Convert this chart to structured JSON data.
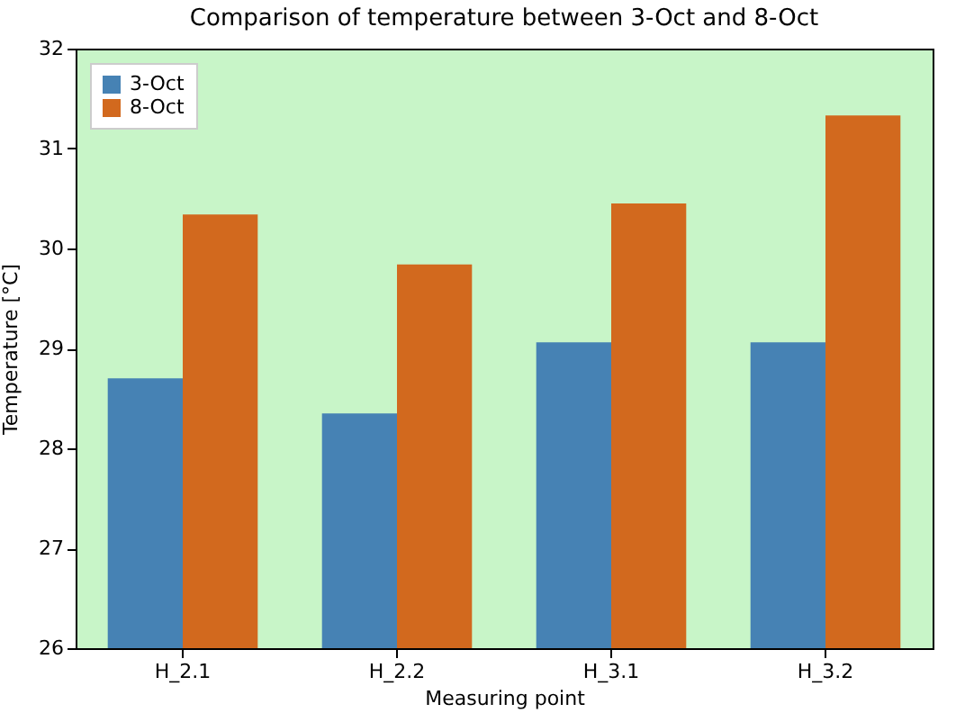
{
  "chart_data": {
    "type": "bar",
    "title": "Comparison of temperature between 3-Oct and 8-Oct",
    "xlabel": "Measuring point",
    "ylabel": "Temperature [°C]",
    "categories": [
      "H_2.1",
      "H_2.2",
      "H_3.1",
      "H_3.2"
    ],
    "series": [
      {
        "name": "3-Oct",
        "color": "#4682b4",
        "values": [
          28.7,
          28.35,
          29.06,
          29.06
        ]
      },
      {
        "name": "8-Oct",
        "color": "#d2691e",
        "values": [
          30.34,
          29.84,
          30.45,
          31.33
        ]
      }
    ],
    "ylim": [
      26,
      32
    ],
    "yticks": [
      26,
      27,
      28,
      29,
      30,
      31,
      32
    ],
    "grid": false,
    "legend": "top left"
  }
}
